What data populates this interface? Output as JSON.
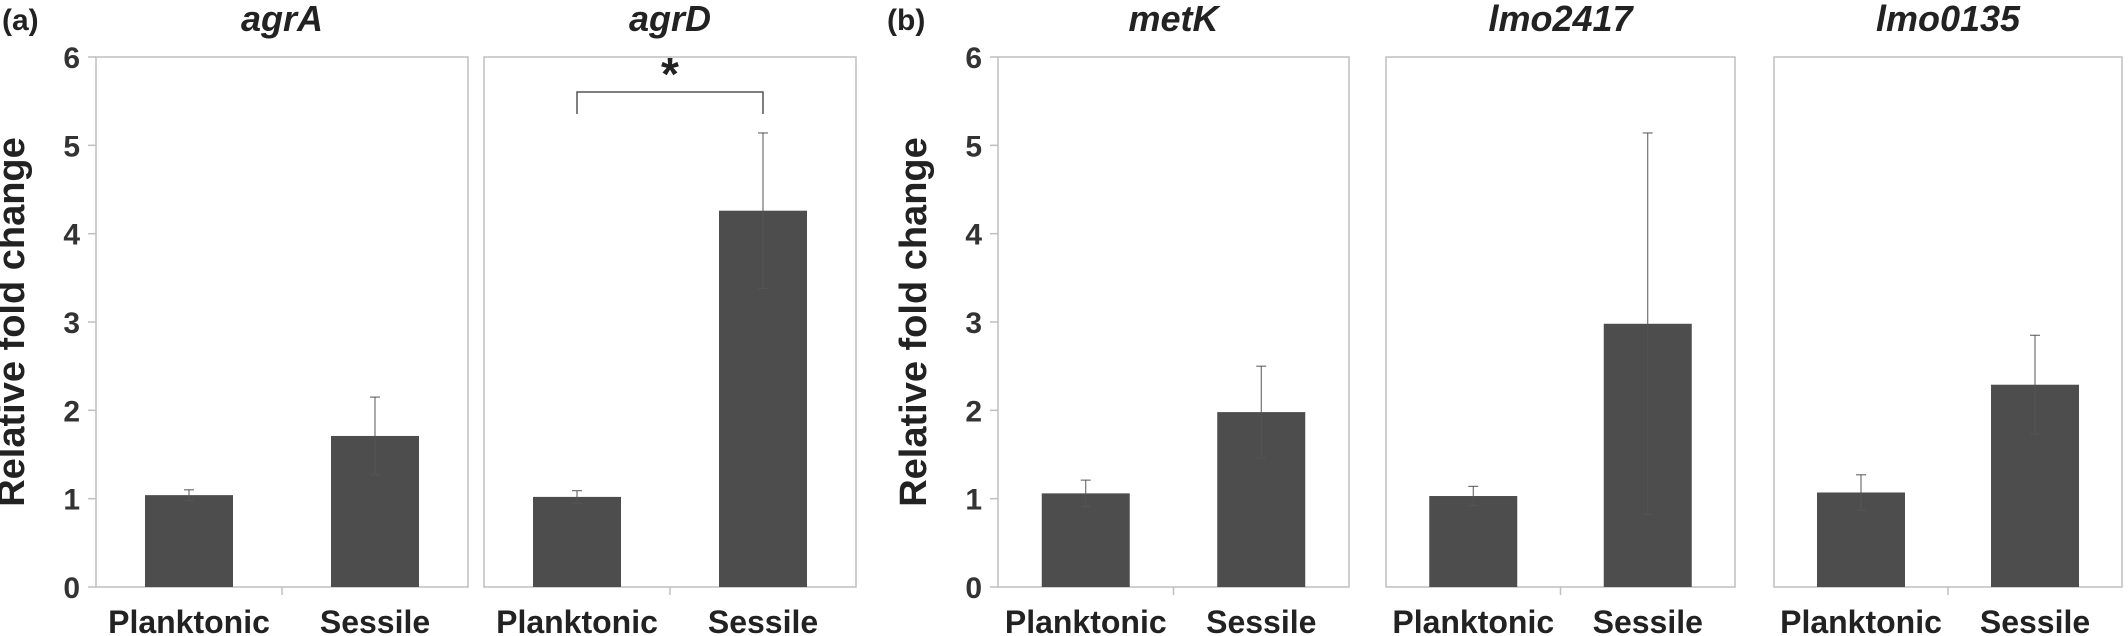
{
  "figure": {
    "panel_letters": [
      "(a)",
      "(b)"
    ],
    "ylabel": "Relative fold change"
  },
  "chart_data": [
    {
      "type": "bar",
      "group": "(a)",
      "title": "agrA",
      "categories": [
        "Planktonic",
        "Sessile"
      ],
      "values": [
        1.04,
        1.71
      ],
      "errors": [
        0.06,
        0.44
      ],
      "ylim": [
        0,
        6
      ],
      "yticks": [
        0,
        1,
        2,
        3,
        4,
        5,
        6
      ],
      "ylabel": "Relative fold change",
      "grid": false
    },
    {
      "type": "bar",
      "group": "(a)",
      "title": "agrD",
      "categories": [
        "Planktonic",
        "Sessile"
      ],
      "values": [
        1.02,
        4.26
      ],
      "errors": [
        0.07,
        0.88
      ],
      "ylim": [
        0,
        6
      ],
      "grid": false,
      "annotation": {
        "text": "*",
        "between": [
          "Planktonic",
          "Sessile"
        ]
      }
    },
    {
      "type": "bar",
      "group": "(b)",
      "title": "metK",
      "categories": [
        "Planktonic",
        "Sessile"
      ],
      "values": [
        1.06,
        1.98
      ],
      "errors": [
        0.15,
        0.52
      ],
      "ylim": [
        0,
        6
      ],
      "yticks": [
        0,
        1,
        2,
        3,
        4,
        5,
        6
      ],
      "ylabel": "Relative fold change",
      "grid": false
    },
    {
      "type": "bar",
      "group": "(b)",
      "title": "lmo2417",
      "categories": [
        "Planktonic",
        "Sessile"
      ],
      "values": [
        1.03,
        2.98
      ],
      "errors": [
        0.11,
        2.16
      ],
      "ylim": [
        0,
        6
      ],
      "grid": false
    },
    {
      "type": "bar",
      "group": "(b)",
      "title": "lmo0135",
      "categories": [
        "Planktonic",
        "Sessile"
      ],
      "values": [
        1.07,
        2.29
      ],
      "errors": [
        0.2,
        0.56
      ],
      "ylim": [
        0,
        6
      ],
      "grid": false
    }
  ]
}
